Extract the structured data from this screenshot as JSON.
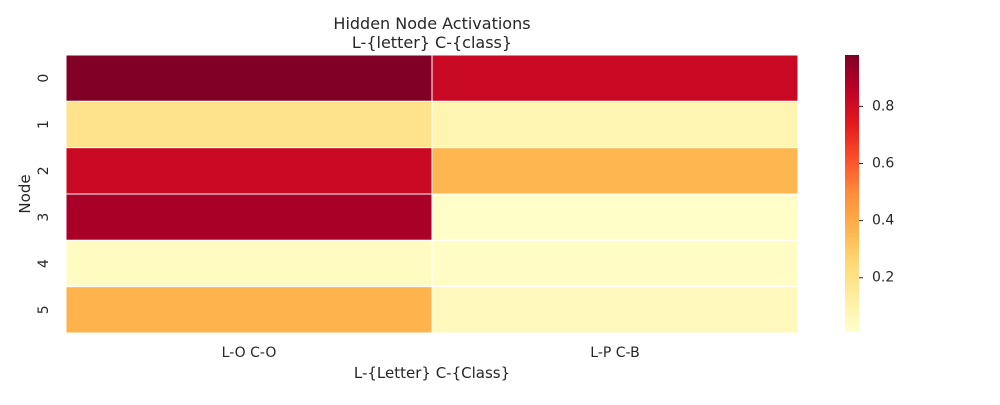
{
  "chart_data": {
    "type": "heatmap",
    "title": "Hidden Node Activations",
    "subtitle": "L-{letter} C-{class}",
    "xlabel": "L-{Letter} C-{Class}",
    "ylabel": "Node",
    "columns": [
      "L-O C-O",
      "L-P C-B"
    ],
    "rows": [
      "0",
      "1",
      "2",
      "3",
      "4",
      "5"
    ],
    "values": [
      [
        0.98,
        0.82
      ],
      [
        0.19,
        0.08
      ],
      [
        0.82,
        0.36
      ],
      [
        0.9,
        0.02
      ],
      [
        0.04,
        0.03
      ],
      [
        0.37,
        0.05
      ]
    ],
    "colormap": "YlOrRd",
    "colorbar": {
      "range": [
        0.01,
        0.98
      ],
      "ticks": [
        0.2,
        0.4,
        0.6,
        0.8
      ],
      "tick_labels": [
        "0.2",
        "0.4",
        "0.6",
        "0.8"
      ]
    },
    "grid": false,
    "cell_borders": "#ffffff"
  }
}
